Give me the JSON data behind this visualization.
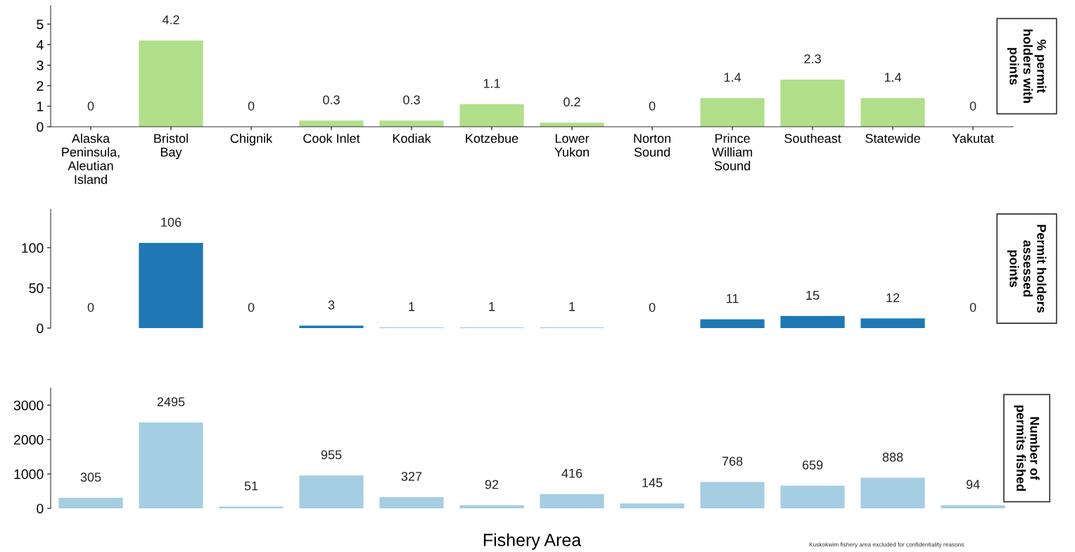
{
  "chart_data": [
    {
      "type": "bar",
      "ylabel": "% permit holders with points",
      "categories": [
        "Alaska Peninsula, Aleutian Island",
        "Bristol Bay",
        "Chignik",
        "Cook Inlet",
        "Kodiak",
        "Kotzebue",
        "Lower Yukon",
        "Norton Sound",
        "Prince William Sound",
        "Southeast",
        "Statewide",
        "Yakutat"
      ],
      "values": [
        0,
        4.2,
        0,
        0.3,
        0.3,
        1.1,
        0.2,
        0,
        1.4,
        2.3,
        1.4,
        0
      ],
      "color": "#b2df8a",
      "ylim": [
        0,
        5.9
      ],
      "yticks": [
        0,
        1,
        2,
        3,
        4,
        5
      ],
      "data_labels": true,
      "grid": false,
      "legend": false
    },
    {
      "type": "bar",
      "ylabel": "Permit holders assessed points",
      "categories": [
        null,
        null,
        null,
        null,
        null,
        null,
        null,
        null,
        null,
        null,
        null,
        null
      ],
      "values": [
        0,
        106,
        0,
        3,
        1,
        1,
        1,
        0,
        11,
        15,
        12,
        0
      ],
      "colors": [
        "#1f78b4",
        "#1f78b4",
        "#1f78b4",
        "#1f78b4",
        "#a6cee3",
        "#a6cee3",
        "#a6cee3",
        "#1f78b4",
        "#1f78b4",
        "#1f78b4",
        "#1f78b4",
        "#1f78b4"
      ],
      "ylim": [
        0,
        148
      ],
      "yticks": [
        0,
        50,
        100
      ],
      "data_labels": true,
      "tick_labels": "y",
      "grid": false,
      "legend": false
    },
    {
      "type": "bar",
      "ylabel": "Number of permits fished",
      "xlabel": "Fishery Area",
      "categories": [
        null,
        null,
        null,
        null,
        null,
        null,
        null,
        null,
        null,
        null,
        null,
        null
      ],
      "values": [
        305,
        2495,
        51,
        955,
        327,
        92,
        416,
        145,
        768,
        659,
        888,
        94
      ],
      "color": "#a6cee3",
      "ylim": [
        0,
        3500
      ],
      "yticks": [
        0,
        1000,
        2000,
        3000
      ],
      "data_labels": true,
      "tick_labels": "y",
      "grid": false,
      "legend": false,
      "annotations": [
        "Kuskokwim fishery area excluded for confidentiality reasons"
      ]
    }
  ]
}
